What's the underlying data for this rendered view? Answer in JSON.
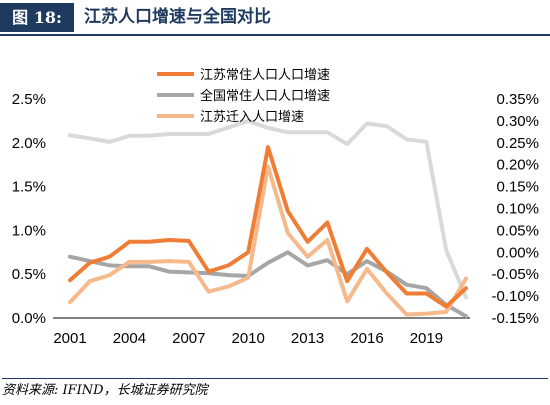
{
  "figure": {
    "tag": "图 18:",
    "title": "江苏人口增速与全国对比"
  },
  "source": "资料来源: IFIND，长城证券研究院",
  "chart_data": {
    "type": "line",
    "x": [
      2001,
      2002,
      2003,
      2004,
      2005,
      2006,
      2007,
      2008,
      2009,
      2010,
      2011,
      2012,
      2013,
      2014,
      2015,
      2016,
      2017,
      2018,
      2019,
      2020,
      2021
    ],
    "x_ticks": [
      "2001",
      "2004",
      "2007",
      "2010",
      "2013",
      "2016",
      "2019"
    ],
    "y_left": {
      "ylim": [
        0,
        2.5
      ],
      "ticks": [
        "0.0%",
        "0.5%",
        "1.0%",
        "1.5%",
        "2.0%",
        "2.5%"
      ]
    },
    "y_right": {
      "ylim": [
        -0.15,
        0.35
      ],
      "ticks": [
        "-0.15%",
        "-0.10%",
        "-0.05%",
        "0.00%",
        "0.05%",
        "0.10%",
        "0.15%",
        "0.20%",
        "0.25%",
        "0.30%",
        "0.35%"
      ]
    },
    "series": [
      {
        "name": "江苏常住人口人口增速",
        "axis": "left",
        "color": "#ef7d35",
        "values": [
          0.43,
          0.63,
          0.7,
          0.87,
          0.87,
          0.89,
          0.88,
          0.53,
          0.6,
          0.75,
          1.95,
          1.22,
          0.87,
          1.09,
          0.42,
          0.79,
          0.52,
          0.28,
          0.28,
          0.13,
          0.34
        ]
      },
      {
        "name": "全国常住人口人口增速",
        "axis": "left",
        "color": "#a6a6a6",
        "values": [
          0.7,
          0.65,
          0.6,
          0.59,
          0.59,
          0.53,
          0.52,
          0.51,
          0.49,
          0.48,
          0.63,
          0.75,
          0.6,
          0.66,
          0.5,
          0.65,
          0.53,
          0.38,
          0.34,
          0.15,
          0.02
        ]
      },
      {
        "name": "江苏迁入人口增速",
        "axis": "left",
        "color": "#f5b98c",
        "values": [
          0.18,
          0.42,
          0.49,
          0.64,
          0.64,
          0.65,
          0.64,
          0.3,
          0.36,
          0.46,
          1.73,
          0.97,
          0.7,
          0.89,
          0.19,
          0.56,
          0.28,
          0.04,
          0.05,
          0.07,
          0.45
        ]
      },
      {
        "name": "",
        "axis": "right",
        "color": "#d9d9d9",
        "values": [
          0.267,
          0.26,
          0.252,
          0.266,
          0.266,
          0.27,
          0.27,
          0.27,
          0.285,
          0.3,
          0.284,
          0.274,
          0.274,
          0.274,
          0.247,
          0.294,
          0.288,
          0.258,
          0.252,
          0.005,
          -0.103
        ]
      }
    ]
  }
}
